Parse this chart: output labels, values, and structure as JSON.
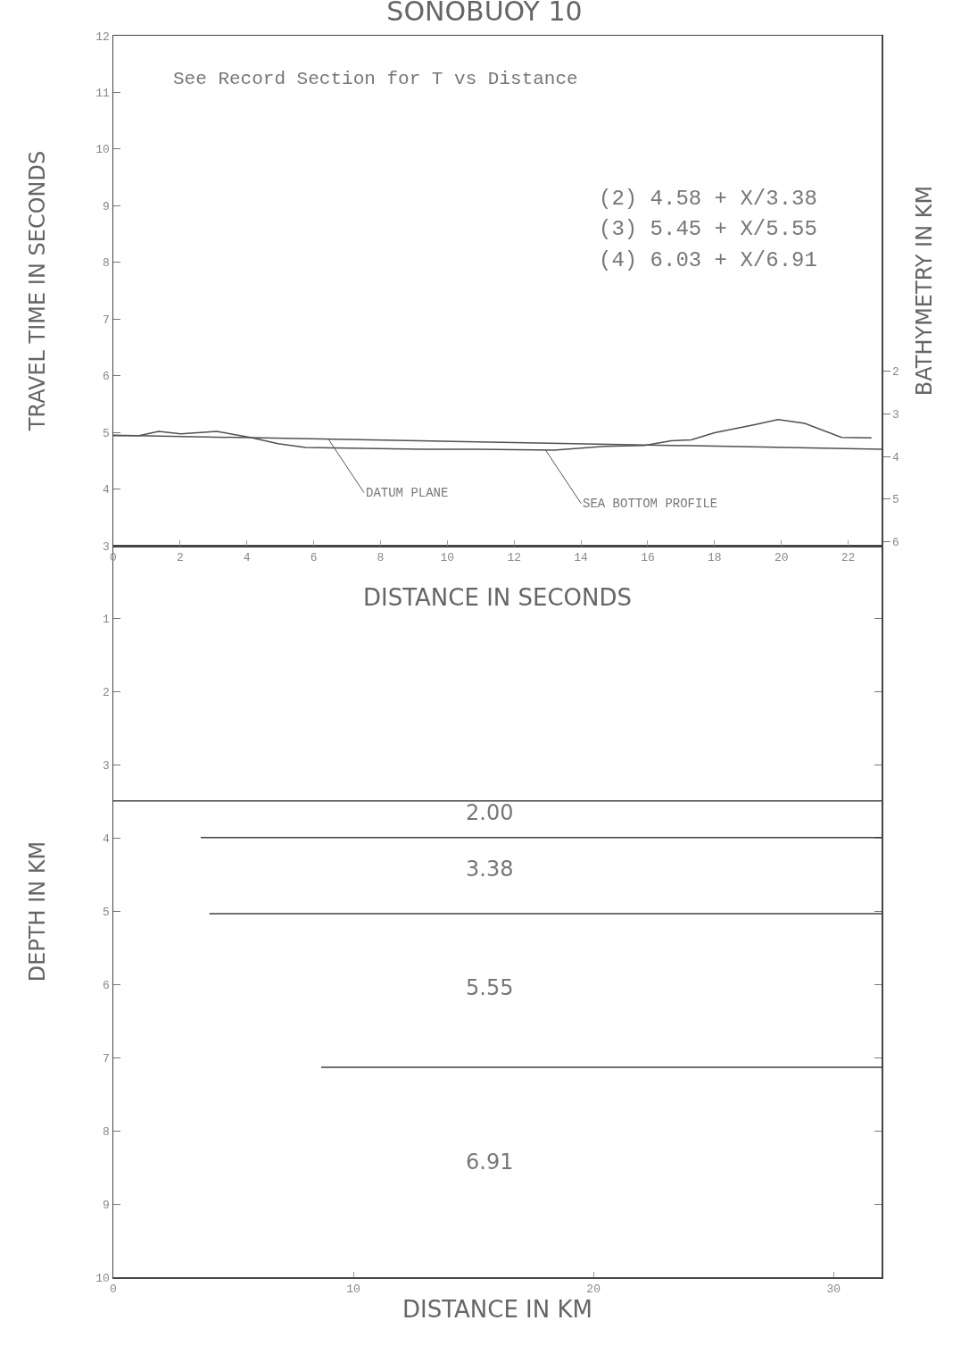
{
  "chart_data": [
    {
      "type": "line",
      "title": "SONOBUOY 10",
      "xlabel": "DISTANCE IN SECONDS",
      "ylabel": "TRAVEL TIME IN SECONDS",
      "y2label": "BATHYMETRY IN KM",
      "xlim": [
        0,
        23
      ],
      "xticks": [
        0,
        2,
        4,
        6,
        8,
        10,
        12,
        14,
        16,
        18,
        20,
        22
      ],
      "ylim": [
        3,
        12
      ],
      "yticks": [
        3,
        4,
        5,
        6,
        7,
        8,
        9,
        10,
        11,
        12
      ],
      "y2lim": [
        6.1,
        -5.9
      ],
      "y2ticks": [
        2,
        3,
        4,
        5,
        6
      ],
      "grid": false,
      "legend": false,
      "marker": "none",
      "series": [
        {
          "name": "DATUM PLANE",
          "axis": "y2",
          "color": "#505050",
          "x": [
            0,
            23
          ],
          "values": [
            3.5,
            3.83
          ]
        },
        {
          "name": "SEA BOTTOM PROFILE",
          "axis": "y2",
          "color": "#505050",
          "x": [
            0,
            0.77,
            1.36,
            2.02,
            3.1,
            4.1,
            4.93,
            5.76,
            6.59,
            9.25,
            10.9,
            13.2,
            14.7,
            15.9,
            16.7,
            17.3,
            18.0,
            19.2,
            19.9,
            20.7,
            21.8,
            22.7
          ],
          "values": [
            3.51,
            3.51,
            3.41,
            3.47,
            3.41,
            3.55,
            3.7,
            3.79,
            3.8,
            3.83,
            3.83,
            3.85,
            3.76,
            3.74,
            3.63,
            3.61,
            3.44,
            3.25,
            3.13,
            3.22,
            3.55,
            3.56
          ]
        }
      ],
      "annotations": [
        "See Record Section for T vs Distance",
        "(2) 4.58 + X/3.38",
        "(3) 5.45 + X/5.55",
        "(4) 6.03 + X/6.91"
      ]
    },
    {
      "type": "line",
      "xlabel": "DISTANCE IN KM",
      "ylabel": "DEPTH IN KM",
      "xlim": [
        0,
        32
      ],
      "xticks": [
        0,
        10,
        20,
        30
      ],
      "ylim": [
        10,
        0
      ],
      "yticks": [
        1,
        2,
        3,
        4,
        5,
        6,
        7,
        8,
        9,
        10
      ],
      "grid": false,
      "legend": false,
      "marker": "none",
      "series": [
        {
          "color": "#404040",
          "x": [
            0,
            32
          ],
          "values": [
            3.49,
            3.49
          ]
        },
        {
          "color": "#404040",
          "x": [
            3.64,
            32
          ],
          "values": [
            3.99,
            3.99
          ]
        },
        {
          "color": "#404040",
          "x": [
            4.0,
            32
          ],
          "values": [
            5.03,
            5.03
          ]
        },
        {
          "color": "#404040",
          "x": [
            8.66,
            32
          ],
          "values": [
            7.13,
            7.13
          ]
        }
      ],
      "annotations": [
        "2.00",
        "3.38",
        "5.55",
        "6.91"
      ]
    }
  ]
}
